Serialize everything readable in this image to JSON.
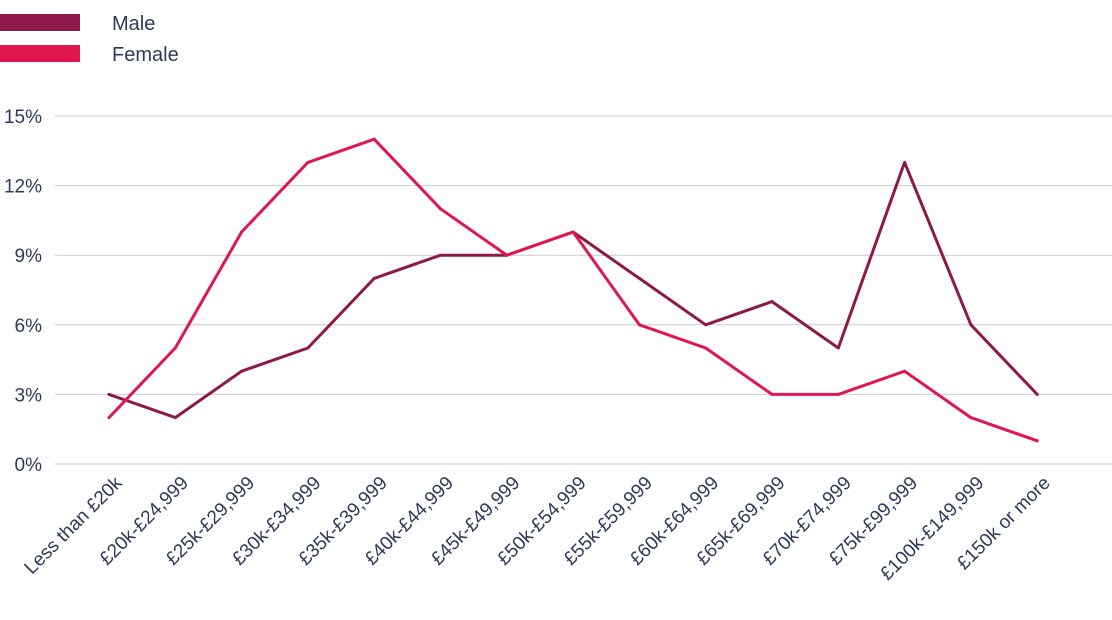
{
  "chart_data": {
    "type": "line",
    "categories": [
      "Less than £20k",
      "£20k-£24,999",
      "£25k-£29,999",
      "£30k-£34,999",
      "£35k-£39,999",
      "£40k-£44,999",
      "£45k-£49,999",
      "£50k-£54,999",
      "£55k-£59,999",
      "£60k-£64,999",
      "£65k-£69,999",
      "£70k-£74,999",
      "£75k-£99,999",
      "£100k-£149,999",
      "£150k or more"
    ],
    "series": [
      {
        "name": "Male",
        "color": "#8b1a4a",
        "values": [
          3,
          2,
          4,
          5,
          8,
          9,
          9,
          10,
          8,
          6,
          7,
          5,
          13,
          6,
          3
        ]
      },
      {
        "name": "Female",
        "color": "#e0174f",
        "values": [
          2,
          5,
          10,
          13,
          14,
          11,
          9,
          10,
          6,
          5,
          3,
          3,
          4,
          2,
          1
        ]
      }
    ],
    "yticks": [
      0,
      3,
      6,
      9,
      12,
      15
    ],
    "ytick_labels": [
      "0%",
      "3%",
      "6%",
      "9%",
      "12%",
      "15%"
    ],
    "ylim": [
      0,
      15
    ],
    "xlabel": "",
    "ylabel": "",
    "title": "",
    "grid": true,
    "legend_position": "top-left"
  }
}
